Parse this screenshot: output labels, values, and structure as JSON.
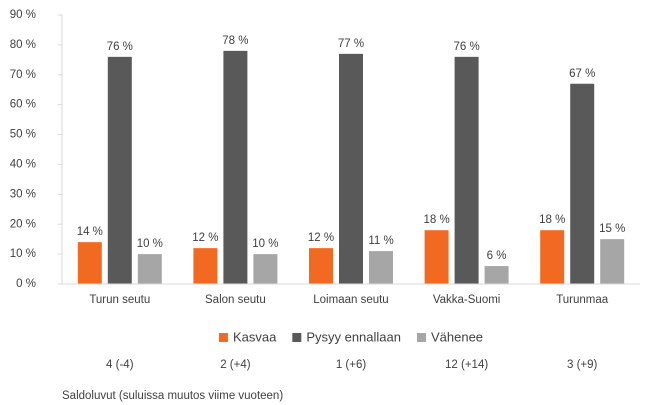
{
  "chart_data": {
    "type": "bar",
    "categories": [
      "Turun seutu",
      "Salon seutu",
      "Loimaan seutu",
      "Vakka-Suomi",
      "Turunmaa"
    ],
    "series": [
      {
        "name": "Kasvaa",
        "color": "#f26a21",
        "values": [
          14,
          12,
          12,
          18,
          18
        ],
        "value_labels": [
          "14 %",
          "12 %",
          "12 %",
          "18 %",
          "18 %"
        ]
      },
      {
        "name": "Pysyy ennallaan",
        "color": "#595959",
        "values": [
          76,
          78,
          77,
          76,
          67
        ],
        "value_labels": [
          "76 %",
          "78 %",
          "77 %",
          "76 %",
          "67 %"
        ]
      },
      {
        "name": "Vähenee",
        "color": "#a6a6a6",
        "values": [
          10,
          10,
          11,
          6,
          15
        ],
        "value_labels": [
          "10 %",
          "10 %",
          "11 %",
          "6 %",
          "15 %"
        ]
      }
    ],
    "ylim": [
      0,
      90
    ],
    "yticks": [
      {
        "value": 0,
        "label": "0 %"
      },
      {
        "value": 10,
        "label": "10 %"
      },
      {
        "value": 20,
        "label": "20 %"
      },
      {
        "value": 30,
        "label": "30 %"
      },
      {
        "value": 40,
        "label": "40 %"
      },
      {
        "value": 50,
        "label": "50 %"
      },
      {
        "value": 60,
        "label": "60 %"
      },
      {
        "value": 70,
        "label": "70 %"
      },
      {
        "value": 80,
        "label": "80 %"
      },
      {
        "value": 90,
        "label": "90 %"
      }
    ],
    "grid": false,
    "legend": "bottom",
    "saldo_labels": [
      "4 (-4)",
      "2 (+4)",
      "1 (+6)",
      "12 (+14)",
      "3 (+9)"
    ],
    "note": "Saldoluvut (suluissa muutos viime vuoteen)"
  }
}
